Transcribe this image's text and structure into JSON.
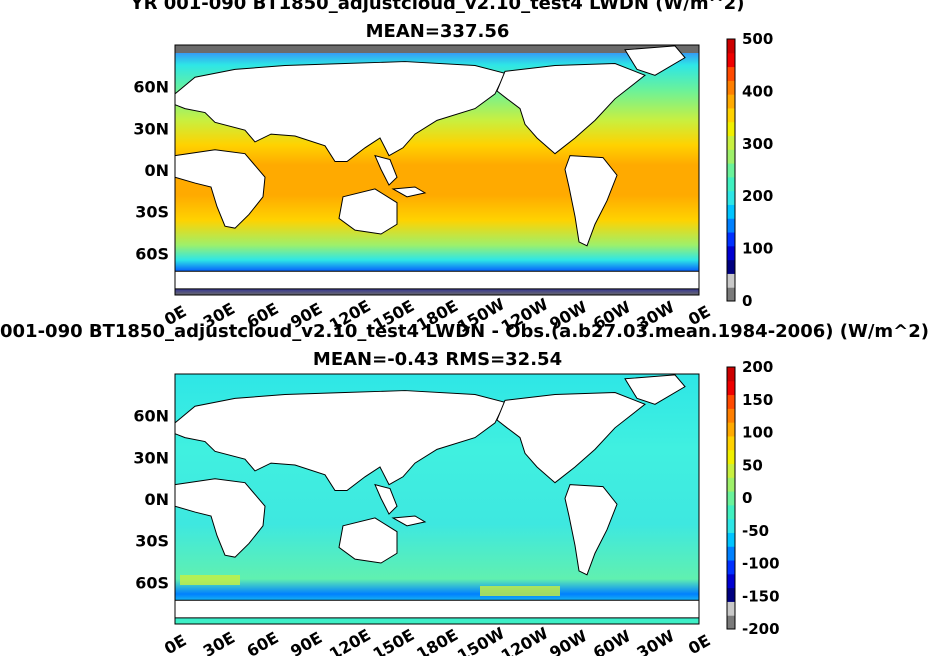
{
  "chart_data": [
    {
      "type": "heatmap",
      "title_line1": "YR 001-090 BT1850_adjustcloud_v2.10_test4 LWDN (W/m^2)",
      "title_line2": "MEAN=337.56",
      "xticklabels": [
        "0E",
        "30E",
        "60E",
        "90E",
        "120E",
        "150E",
        "180E",
        "150W",
        "120W",
        "90W",
        "60W",
        "30W",
        "0E"
      ],
      "yticklabels": [
        "60N",
        "30N",
        "0N",
        "30S",
        "60S"
      ],
      "xlim": [
        0,
        360
      ],
      "ylim": [
        -90,
        90
      ],
      "colorbar": {
        "range": [
          0,
          500
        ],
        "ticks": [
          "500",
          "400",
          "300",
          "200",
          "100",
          "0"
        ]
      },
      "colors": {
        "land": "#ffffff",
        "missing": "#6b6b6b",
        "border": "#000000"
      }
    },
    {
      "type": "heatmap",
      "title_line1": "001-090 BT1850_adjustcloud_v2.10_test4 LWDN - Obs.(a.b27.03.mean.1984-2006) (W/m^2)",
      "title_line2": "MEAN=-0.43 RMS=32.54",
      "xticklabels": [
        "0E",
        "30E",
        "60E",
        "90E",
        "120E",
        "150E",
        "180E",
        "150W",
        "120W",
        "90W",
        "60W",
        "30W",
        "0E"
      ],
      "yticklabels": [
        "60N",
        "30N",
        "0N",
        "30S",
        "60S"
      ],
      "xlim": [
        0,
        360
      ],
      "ylim": [
        -90,
        90
      ],
      "colorbar": {
        "range": [
          -200,
          200
        ],
        "ticks": [
          "200",
          "150",
          "100",
          "50",
          "0",
          "-50",
          "-100",
          "-150",
          "-200"
        ]
      },
      "colors": {
        "land": "#ffffff",
        "missing": "#6b6b6b",
        "border": "#000000"
      }
    }
  ],
  "colormap": [
    "#7a7a7a",
    "#c8c8c8",
    "#00007f",
    "#0000d0",
    "#0030ff",
    "#0080ff",
    "#00c4ff",
    "#2ee6e6",
    "#40f0c0",
    "#6af29a",
    "#9ef06a",
    "#c8f040",
    "#f0f000",
    "#ffd200",
    "#ffaa00",
    "#ff7f00",
    "#ff4a00",
    "#ee0000",
    "#cc0000"
  ]
}
